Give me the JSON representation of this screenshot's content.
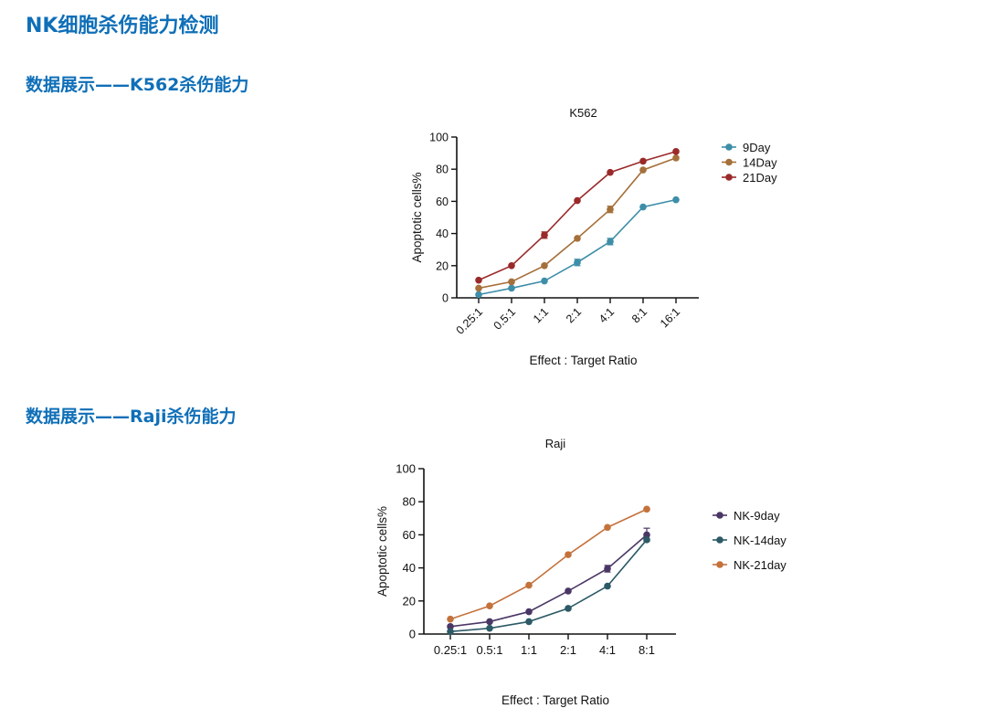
{
  "page": {
    "title": "NK细胞杀伤能力检测",
    "section1_heading": "数据展示——K562杀伤能力",
    "section2_heading": "数据展示——Raji杀伤能力"
  },
  "chart_data": [
    {
      "type": "line",
      "title": "K562",
      "xlabel": "Effect : Target Ratio",
      "ylabel": "Apoptotic cells%",
      "categories": [
        "0.25:1",
        "0.5:1",
        "1:1",
        "2:1",
        "4:1",
        "8:1",
        "16:1"
      ],
      "ylim": [
        0,
        100
      ],
      "yticks": [
        0,
        20,
        40,
        60,
        80,
        100
      ],
      "grid": false,
      "legend_position": "top-right",
      "x_tick_rotation": -45,
      "series": [
        {
          "name": "9Day",
          "color": "#3d8ea8",
          "values": [
            2,
            6,
            10.5,
            22,
            35,
            56.5,
            61
          ],
          "errors": [
            0,
            0,
            0,
            2,
            2,
            0,
            0
          ]
        },
        {
          "name": "14Day",
          "color": "#a5703a",
          "values": [
            6,
            10,
            20,
            37,
            55,
            79.5,
            87
          ],
          "errors": [
            0,
            0,
            0,
            0,
            2,
            0,
            0
          ]
        },
        {
          "name": "21Day",
          "color": "#9a2a2a",
          "values": [
            11,
            20,
            39,
            60.5,
            78,
            85,
            91
          ],
          "errors": [
            0,
            0,
            2,
            0,
            0,
            0,
            0
          ]
        }
      ]
    },
    {
      "type": "line",
      "title": "Raji",
      "xlabel": "Effect : Target Ratio",
      "ylabel": "Apoptotic cells%",
      "categories": [
        "0.25:1",
        "0.5:1",
        "1:1",
        "2:1",
        "4:1",
        "8:1"
      ],
      "ylim": [
        0,
        100
      ],
      "yticks": [
        0,
        20,
        40,
        60,
        80,
        100
      ],
      "grid": false,
      "legend_position": "right",
      "x_tick_rotation": 0,
      "series": [
        {
          "name": "NK-9day",
          "color": "#4a3766",
          "values": [
            4.5,
            7.5,
            13.5,
            26,
            39.5,
            60
          ],
          "errors": [
            0,
            0,
            0,
            0,
            2,
            4
          ]
        },
        {
          "name": "NK-14day",
          "color": "#2c5a66",
          "values": [
            1.5,
            3.5,
            7.5,
            15.5,
            29,
            57
          ],
          "errors": [
            0,
            0,
            0,
            0,
            0,
            0
          ]
        },
        {
          "name": "NK-21day",
          "color": "#c4723b",
          "values": [
            9,
            17,
            29.5,
            48,
            64.5,
            75.5
          ],
          "errors": [
            0,
            0,
            0,
            0,
            0,
            0
          ]
        }
      ]
    }
  ]
}
